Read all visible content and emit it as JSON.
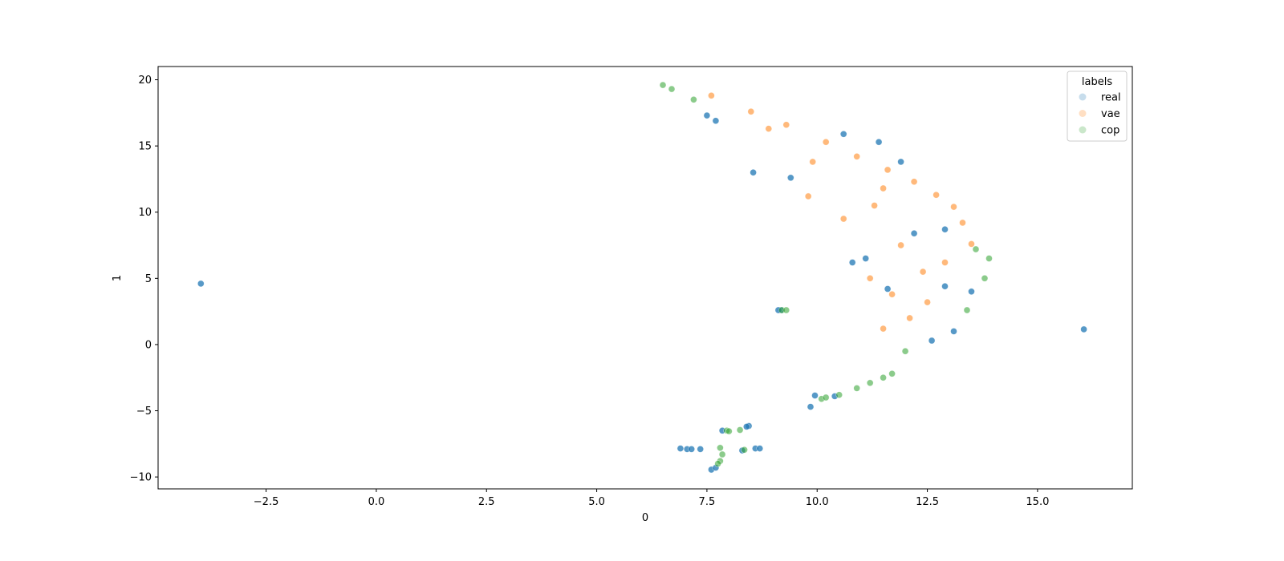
{
  "chart_data": {
    "type": "scatter",
    "title": "",
    "xlabel": "0",
    "ylabel": "1",
    "xlim": [
      -4.95,
      17.15
    ],
    "ylim": [
      -10.9,
      21.0
    ],
    "xticks": [
      -2.5,
      0.0,
      2.5,
      5.0,
      7.5,
      10.0,
      12.5,
      15.0
    ],
    "xtick_labels": [
      "−2.5",
      "0.0",
      "2.5",
      "5.0",
      "7.5",
      "10.0",
      "12.5",
      "15.0"
    ],
    "yticks": [
      -10,
      -5,
      0,
      5,
      10,
      15,
      20
    ],
    "ytick_labels": [
      "−10",
      "−5",
      "0",
      "5",
      "10",
      "15",
      "20"
    ],
    "grid": false,
    "legend": {
      "title": "labels",
      "placement": "top-right",
      "entries": [
        "real",
        "vae",
        "cop"
      ]
    },
    "colors": {
      "real": "#1f77b4",
      "vae": "#ff7f0e",
      "cop": "#2ca02c"
    },
    "series": [
      {
        "name": "real",
        "points": [
          [
            -3.98,
            4.6
          ],
          [
            16.05,
            1.15
          ],
          [
            8.55,
            13.0
          ],
          [
            7.7,
            16.9
          ],
          [
            7.5,
            17.3
          ],
          [
            9.18,
            2.6
          ],
          [
            9.12,
            2.6
          ],
          [
            9.85,
            -4.7
          ],
          [
            9.95,
            -3.85
          ],
          [
            10.4,
            -3.9
          ],
          [
            6.9,
            -7.85
          ],
          [
            7.05,
            -7.9
          ],
          [
            7.15,
            -7.9
          ],
          [
            7.35,
            -7.9
          ],
          [
            7.6,
            -9.45
          ],
          [
            7.7,
            -9.3
          ],
          [
            7.85,
            -6.5
          ],
          [
            8.45,
            -6.15
          ],
          [
            8.4,
            -6.2
          ],
          [
            8.6,
            -7.85
          ],
          [
            8.7,
            -7.85
          ],
          [
            8.3,
            -8.0
          ],
          [
            10.8,
            6.2
          ],
          [
            11.1,
            6.5
          ],
          [
            11.6,
            4.2
          ],
          [
            12.2,
            8.4
          ],
          [
            12.9,
            8.7
          ],
          [
            13.1,
            1.0
          ],
          [
            12.6,
            0.3
          ],
          [
            11.9,
            13.8
          ],
          [
            11.4,
            15.3
          ],
          [
            10.6,
            15.9
          ],
          [
            9.4,
            12.6
          ],
          [
            12.9,
            4.4
          ],
          [
            13.5,
            4.0
          ]
        ]
      },
      {
        "name": "vae",
        "points": [
          [
            7.6,
            18.8
          ],
          [
            8.5,
            17.6
          ],
          [
            9.3,
            16.6
          ],
          [
            10.2,
            15.3
          ],
          [
            10.9,
            14.2
          ],
          [
            11.6,
            13.2
          ],
          [
            12.2,
            12.3
          ],
          [
            12.7,
            11.3
          ],
          [
            13.1,
            10.4
          ],
          [
            13.3,
            9.2
          ],
          [
            11.3,
            10.5
          ],
          [
            11.9,
            7.5
          ],
          [
            12.4,
            5.5
          ],
          [
            11.7,
            3.8
          ],
          [
            12.1,
            2.0
          ],
          [
            11.5,
            1.2
          ],
          [
            10.6,
            9.5
          ],
          [
            9.8,
            11.2
          ],
          [
            12.9,
            6.2
          ],
          [
            13.5,
            7.6
          ],
          [
            11.2,
            5.0
          ],
          [
            12.5,
            3.2
          ],
          [
            8.9,
            16.3
          ],
          [
            9.9,
            13.8
          ],
          [
            11.5,
            11.8
          ]
        ]
      },
      {
        "name": "cop",
        "points": [
          [
            6.5,
            19.6
          ],
          [
            6.7,
            19.3
          ],
          [
            7.2,
            18.5
          ],
          [
            9.2,
            2.6
          ],
          [
            9.3,
            2.6
          ],
          [
            7.95,
            -6.5
          ],
          [
            8.0,
            -6.55
          ],
          [
            8.25,
            -6.45
          ],
          [
            7.8,
            -7.8
          ],
          [
            7.85,
            -8.3
          ],
          [
            7.8,
            -8.8
          ],
          [
            7.75,
            -9.0
          ],
          [
            8.35,
            -7.95
          ],
          [
            10.1,
            -4.1
          ],
          [
            10.2,
            -4.0
          ],
          [
            10.5,
            -3.8
          ],
          [
            10.9,
            -3.3
          ],
          [
            11.2,
            -2.9
          ],
          [
            11.5,
            -2.5
          ],
          [
            11.7,
            -2.2
          ],
          [
            13.9,
            6.5
          ],
          [
            13.8,
            5.0
          ],
          [
            13.6,
            7.2
          ],
          [
            13.4,
            2.6
          ],
          [
            12.0,
            -0.5
          ]
        ]
      }
    ]
  }
}
